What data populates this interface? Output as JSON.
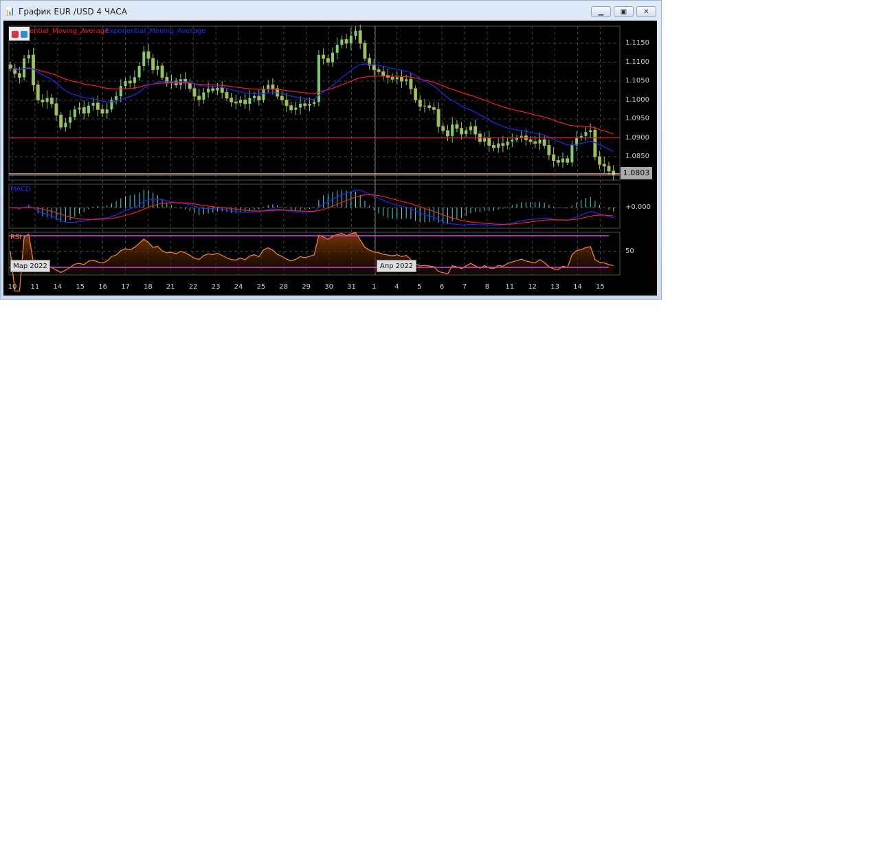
{
  "window": {
    "title": "График EUR /USD  4 ЧАСА",
    "app_icon": "candlestick-chart-icon",
    "buttons": {
      "minimize": "minimize-icon",
      "restore": "restore-icon",
      "close": "close-icon"
    }
  },
  "legend": {
    "ema_slow": "ential_Moving_Average",
    "ema_fast": "Exponential_Moving_Average"
  },
  "panes": {
    "macd": "MACD",
    "rsi": "RSI"
  },
  "months": [
    "Мар 2022",
    "Апр 2022"
  ],
  "current_price": "1.0803",
  "macd_zero_label": "+0.000",
  "rsi_mid_label": "50",
  "colors": {
    "bull": "#7fcf6a",
    "bear": "#c8a040",
    "ema_slow": "#ff1a1a",
    "ema_fast": "#1a2cff",
    "hline": "#e02020",
    "hist": "#40e0e0",
    "rsi": "#ff8c1a",
    "rsi_levels": "#e040e0"
  },
  "chart_data": {
    "type": "candlestick",
    "symbol": "EUR/USD",
    "timeframe": "4 ЧАСА",
    "price_ticks": [
      "1.1150",
      "1.1100",
      "1.1050",
      "1.1000",
      "1.0950",
      "1.0900",
      "1.0850"
    ],
    "date_ticks": [
      "10",
      "11",
      "14",
      "15",
      "16",
      "17",
      "18",
      "21",
      "22",
      "23",
      "24",
      "25",
      "28",
      "29",
      "30",
      "31",
      "1",
      "4",
      "5",
      "6",
      "7",
      "8",
      "11",
      "12",
      "13",
      "14",
      "15"
    ],
    "horizontal_line": 1.09,
    "ylim": [
      1.0795,
      1.1195
    ],
    "rsi_levels": [
      30,
      50,
      70
    ],
    "closes": [
      1.1083,
      1.107,
      1.106,
      1.111,
      1.1119,
      1.104,
      1.1,
      1.0995,
      1.1005,
      1.099,
      1.096,
      1.0928,
      1.094,
      1.0955,
      1.0975,
      1.098,
      1.0965,
      1.0985,
      1.0992,
      1.0975,
      1.0965,
      1.0975,
      1.1,
      1.101,
      1.1037,
      1.105,
      1.1045,
      1.106,
      1.109,
      1.1128,
      1.111,
      1.108,
      1.109,
      1.106,
      1.1046,
      1.105,
      1.104,
      1.1055,
      1.1046,
      1.103,
      1.101,
      1.1001,
      1.102,
      1.103,
      1.1025,
      1.1032,
      1.102,
      1.1005,
      1.0995,
      1.0992,
      1.1,
      1.099,
      1.1005,
      1.101,
      1.1,
      1.103,
      1.104,
      1.103,
      1.101,
      1.1,
      1.0985,
      1.0974,
      1.098,
      1.099,
      1.0985,
      1.099,
      1.0995,
      1.1119,
      1.111,
      1.11,
      1.1125,
      1.1146,
      1.116,
      1.115,
      1.117,
      1.1183,
      1.115,
      1.111,
      1.1092,
      1.108,
      1.1075,
      1.1065,
      1.106,
      1.1055,
      1.106,
      1.105,
      1.1055,
      1.103,
      1.1,
      1.0983,
      1.0985,
      1.098,
      1.0975,
      1.093,
      1.0919,
      1.0905,
      1.0935,
      1.0925,
      1.091,
      1.092,
      1.093,
      1.091,
      1.089,
      1.09,
      1.088,
      1.0874,
      1.0885,
      1.088,
      1.089,
      1.0895,
      1.09,
      1.0905,
      1.0895,
      1.089,
      1.0885,
      1.0895,
      1.088,
      1.0855,
      1.084,
      1.0835,
      1.0845,
      1.0835,
      1.088,
      1.09,
      1.0905,
      1.0915,
      1.092,
      1.085,
      1.083,
      1.0825,
      1.0812,
      1.0803
    ]
  }
}
